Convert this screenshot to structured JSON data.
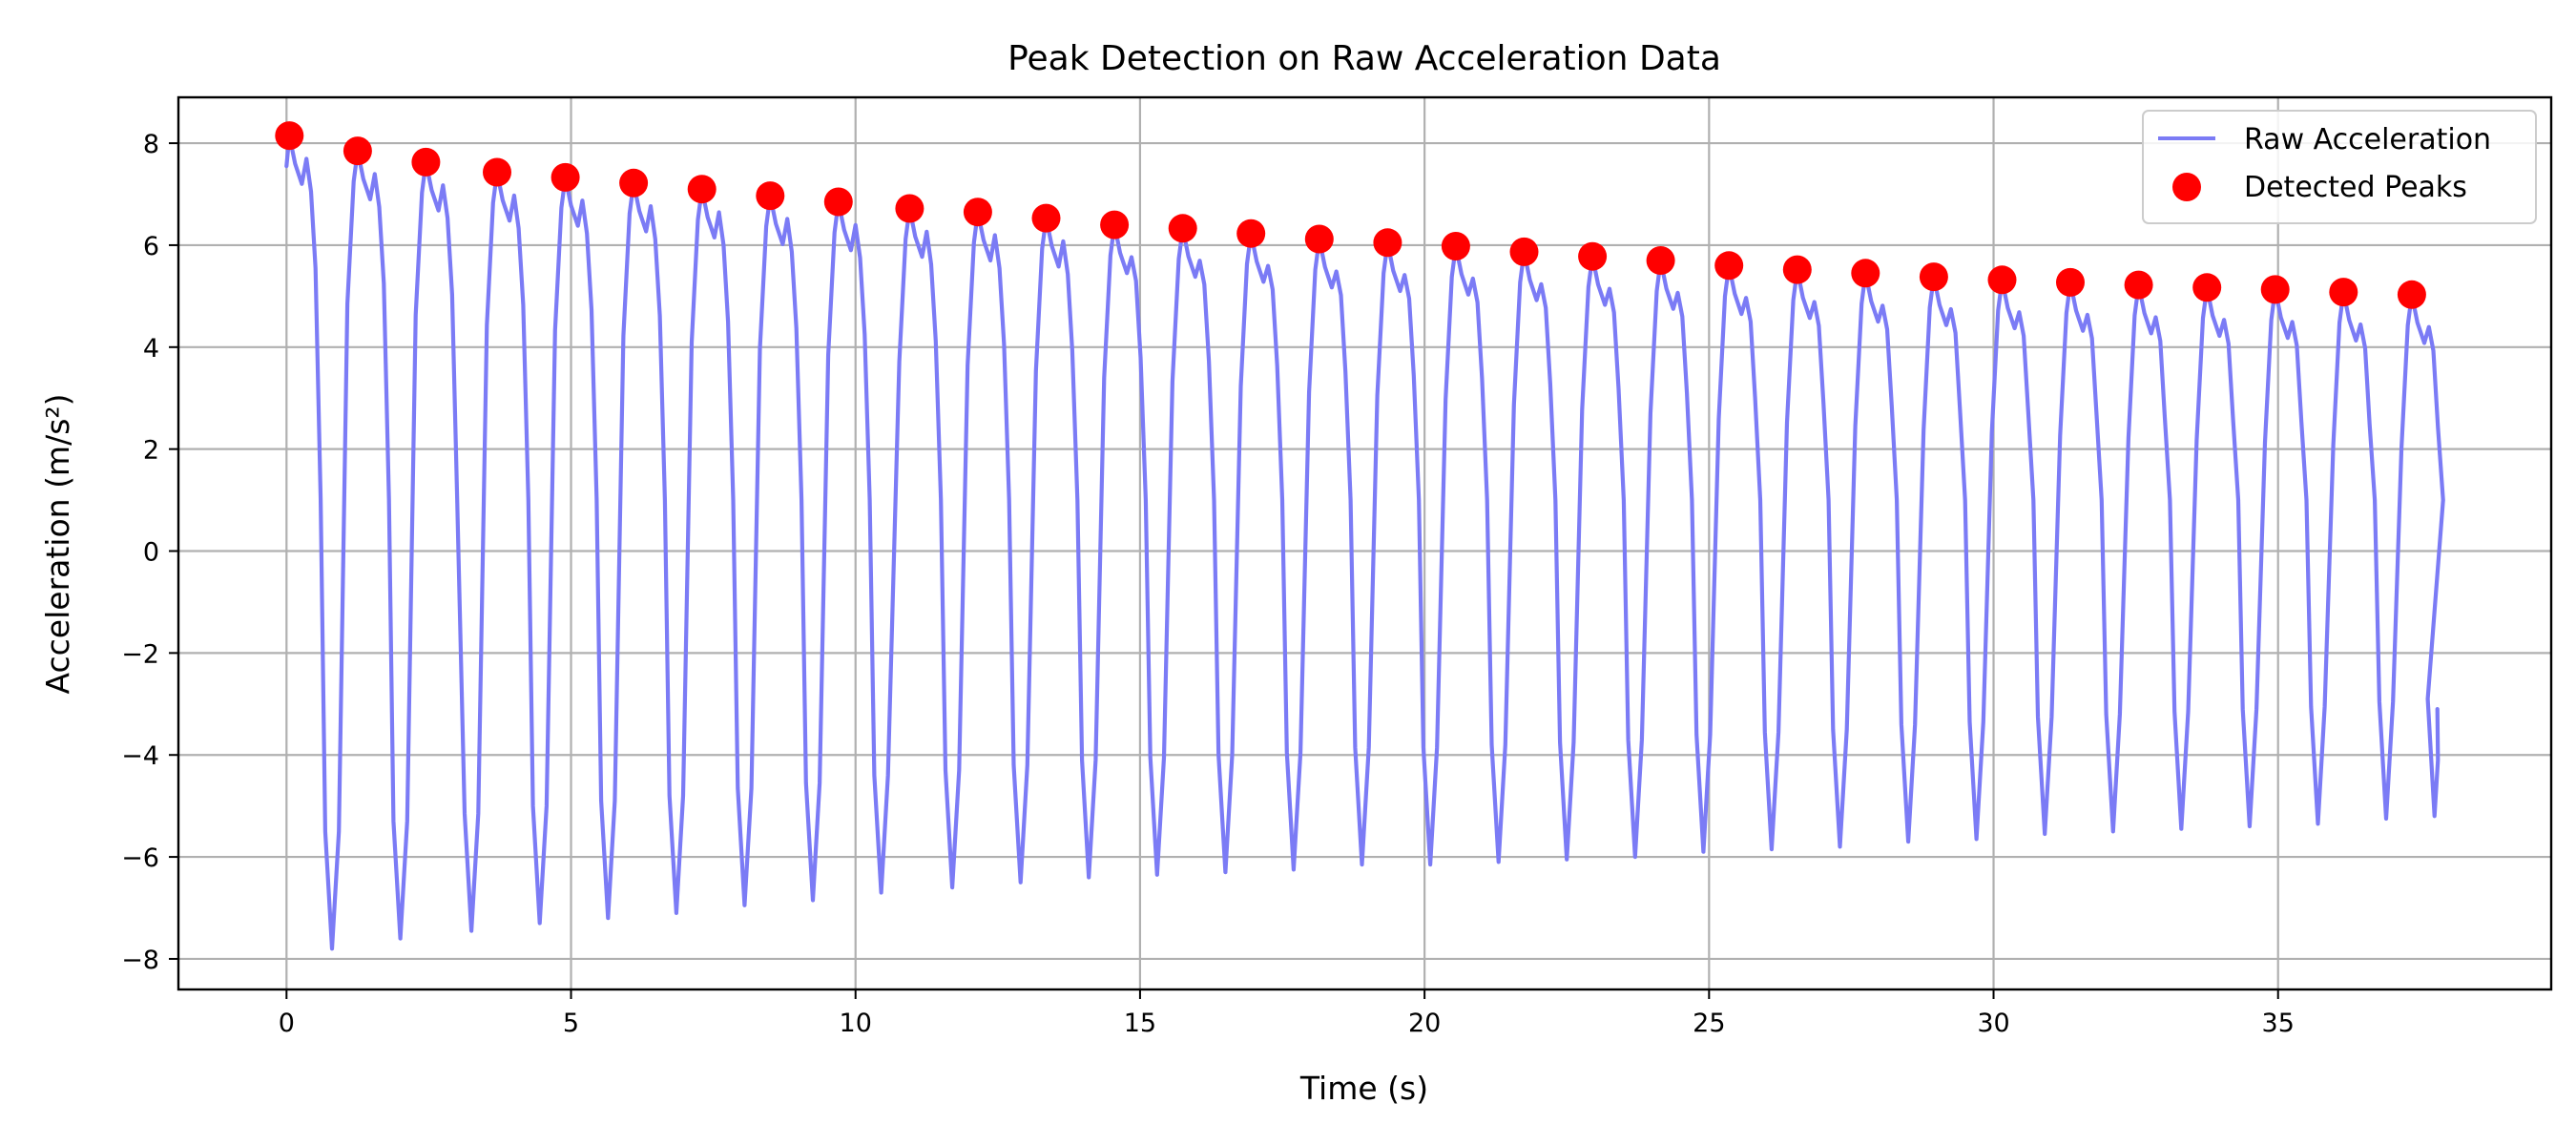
{
  "chart_data": {
    "type": "line",
    "title": "Peak Detection on Raw Acceleration Data",
    "xlabel": "Time (s)",
    "ylabel": "Acceleration (m/s²)",
    "xlim": [
      -1.9,
      39.8
    ],
    "ylim": [
      -8.6,
      8.9
    ],
    "xticks": [
      0,
      5,
      10,
      15,
      20,
      25,
      30,
      35
    ],
    "yticks": [
      -8,
      -6,
      -4,
      -2,
      0,
      2,
      4,
      6,
      8
    ],
    "xtick_labels": [
      "0",
      "5",
      "10",
      "15",
      "20",
      "25",
      "30",
      "35"
    ],
    "ytick_labels": [
      "−8",
      "−6",
      "−4",
      "−2",
      "0",
      "2",
      "4",
      "6",
      "8"
    ],
    "grid": true,
    "legend_position": "top-right",
    "series": [
      {
        "name": "Raw Acceleration",
        "kind": "line",
        "color": "#7b7bf5",
        "end": {
          "x": 37.8,
          "y": -3.1
        },
        "troughs": [
          {
            "x": 0.8,
            "y": -7.8
          },
          {
            "x": 2.0,
            "y": -7.6
          },
          {
            "x": 3.25,
            "y": -7.45
          },
          {
            "x": 4.45,
            "y": -7.3
          },
          {
            "x": 5.65,
            "y": -7.2
          },
          {
            "x": 6.85,
            "y": -7.1
          },
          {
            "x": 8.05,
            "y": -6.95
          },
          {
            "x": 9.25,
            "y": -6.85
          },
          {
            "x": 10.45,
            "y": -6.7
          },
          {
            "x": 11.7,
            "y": -6.6
          },
          {
            "x": 12.9,
            "y": -6.5
          },
          {
            "x": 14.1,
            "y": -6.4
          },
          {
            "x": 15.3,
            "y": -6.35
          },
          {
            "x": 16.5,
            "y": -6.3
          },
          {
            "x": 17.7,
            "y": -6.25
          },
          {
            "x": 18.9,
            "y": -6.15
          },
          {
            "x": 20.1,
            "y": -6.15
          },
          {
            "x": 21.3,
            "y": -6.1
          },
          {
            "x": 22.5,
            "y": -6.05
          },
          {
            "x": 23.7,
            "y": -6.0
          },
          {
            "x": 24.9,
            "y": -5.9
          },
          {
            "x": 26.1,
            "y": -5.85
          },
          {
            "x": 27.3,
            "y": -5.8
          },
          {
            "x": 28.5,
            "y": -5.7
          },
          {
            "x": 29.7,
            "y": -5.65
          },
          {
            "x": 30.9,
            "y": -5.55
          },
          {
            "x": 32.1,
            "y": -5.5
          },
          {
            "x": 33.3,
            "y": -5.45
          },
          {
            "x": 34.5,
            "y": -5.4
          },
          {
            "x": 35.7,
            "y": -5.35
          },
          {
            "x": 36.9,
            "y": -5.25
          },
          {
            "x": 37.75,
            "y": -5.2
          }
        ]
      },
      {
        "name": "Detected Peaks",
        "kind": "markers",
        "color": "#ff0000",
        "points": [
          {
            "x": 0.05,
            "y": 8.15
          },
          {
            "x": 1.25,
            "y": 7.85
          },
          {
            "x": 2.45,
            "y": 7.63
          },
          {
            "x": 3.7,
            "y": 7.43
          },
          {
            "x": 4.9,
            "y": 7.33
          },
          {
            "x": 6.1,
            "y": 7.22
          },
          {
            "x": 7.3,
            "y": 7.1
          },
          {
            "x": 8.5,
            "y": 6.97
          },
          {
            "x": 9.7,
            "y": 6.85
          },
          {
            "x": 10.95,
            "y": 6.72
          },
          {
            "x": 12.15,
            "y": 6.65
          },
          {
            "x": 13.35,
            "y": 6.53
          },
          {
            "x": 14.55,
            "y": 6.4
          },
          {
            "x": 15.75,
            "y": 6.33
          },
          {
            "x": 16.95,
            "y": 6.23
          },
          {
            "x": 18.15,
            "y": 6.12
          },
          {
            "x": 19.35,
            "y": 6.05
          },
          {
            "x": 20.55,
            "y": 5.98
          },
          {
            "x": 21.75,
            "y": 5.87
          },
          {
            "x": 22.95,
            "y": 5.78
          },
          {
            "x": 24.15,
            "y": 5.7
          },
          {
            "x": 25.35,
            "y": 5.6
          },
          {
            "x": 26.55,
            "y": 5.52
          },
          {
            "x": 27.75,
            "y": 5.45
          },
          {
            "x": 28.95,
            "y": 5.38
          },
          {
            "x": 30.15,
            "y": 5.32
          },
          {
            "x": 31.35,
            "y": 5.27
          },
          {
            "x": 32.55,
            "y": 5.22
          },
          {
            "x": 33.75,
            "y": 5.17
          },
          {
            "x": 34.95,
            "y": 5.13
          },
          {
            "x": 36.15,
            "y": 5.08
          },
          {
            "x": 37.35,
            "y": 5.03
          }
        ]
      }
    ]
  }
}
